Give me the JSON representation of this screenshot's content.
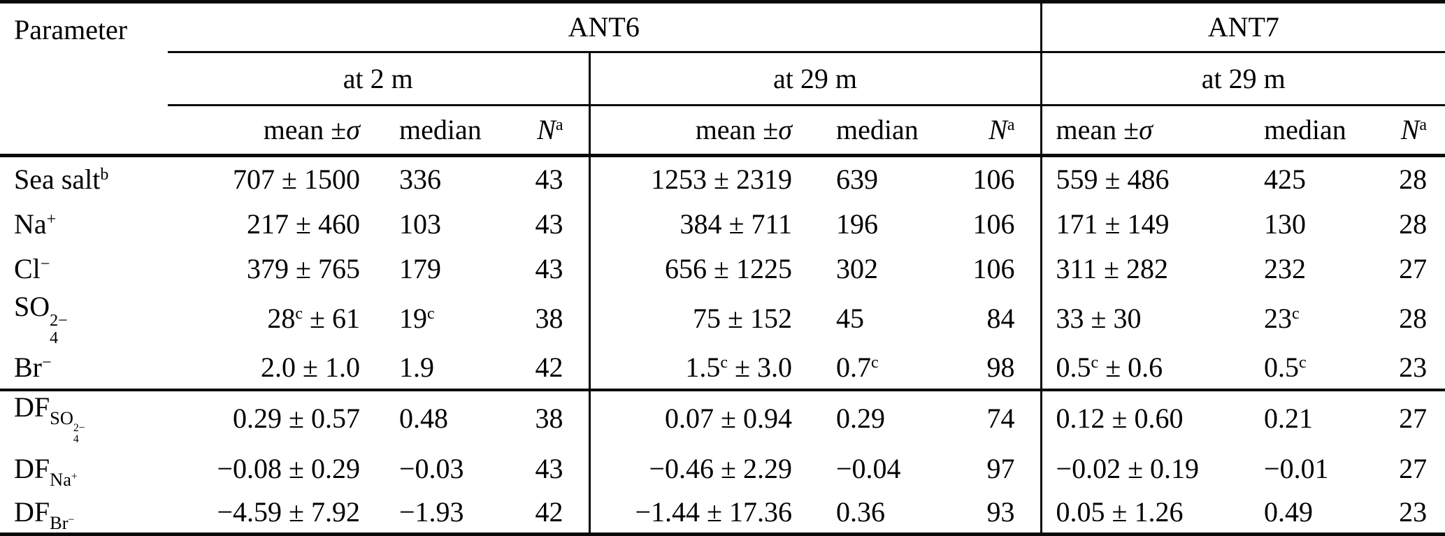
{
  "table": {
    "parameter_label": "Parameter",
    "campaign_headers": [
      {
        "label": "ANT6"
      },
      {
        "label": "ANT7"
      }
    ],
    "height_headers": [
      {
        "label": "at 2 m"
      },
      {
        "label": "at 29 m"
      },
      {
        "label": "at 29 m"
      }
    ],
    "stat_headers": {
      "mean": "mean ±*σ*",
      "median": "median",
      "n": "*N*^{a}"
    },
    "concentration_rows": [
      {
        "param": "Sea salt^{b}",
        "values": [
          "707 ± 1500",
          "336",
          "43",
          "1253 ± 2319",
          "639",
          "106",
          "559 ± 486",
          "425",
          "28"
        ]
      },
      {
        "param": "Na^{+}",
        "values": [
          "217 ± 460",
          "103",
          "43",
          "384 ± 711",
          "196",
          "106",
          "171 ± 149",
          "130",
          "28"
        ]
      },
      {
        "param": "Cl^{−}",
        "values": [
          "379 ± 765",
          "179",
          "43",
          "656 ± 1225",
          "302",
          "106",
          "311 ± 282",
          "232",
          "27"
        ]
      },
      {
        "param": "SO^{2−}_{4}",
        "values": [
          "28^{c} ± 61",
          "19^{c}",
          "38",
          "75 ± 152",
          "45",
          "84",
          "33 ± 30",
          "23^{c}",
          "28"
        ]
      },
      {
        "param": "Br^{−}",
        "values": [
          "2.0 ± 1.0",
          "1.9",
          "42",
          "1.5^{c} ± 3.0",
          "0.7^{c}",
          "98",
          "0.5^{c} ± 0.6",
          "0.5^{c}",
          "23"
        ]
      }
    ],
    "df_rows": [
      {
        "param": "DF_[SO^{2−}_{4}]",
        "values": [
          "0.29 ± 0.57",
          "0.48",
          "38",
          "0.07 ± 0.94",
          "0.29",
          "74",
          "0.12 ± 0.60",
          "0.21",
          "27"
        ]
      },
      {
        "param": "DF_[Na^{+}]",
        "values": [
          "−0.08 ± 0.29",
          "−0.03",
          "43",
          "−0.46 ± 2.29",
          "−0.04",
          "97",
          "−0.02 ± 0.19",
          "−0.01",
          "27"
        ]
      },
      {
        "param": "DF_[Br^{−}]",
        "values": [
          "−4.59 ± 7.92",
          "−1.93",
          "42",
          "−1.44 ± 17.36",
          "0.36",
          "93",
          "0.05 ± 1.26",
          "0.49",
          "23"
        ]
      }
    ]
  }
}
